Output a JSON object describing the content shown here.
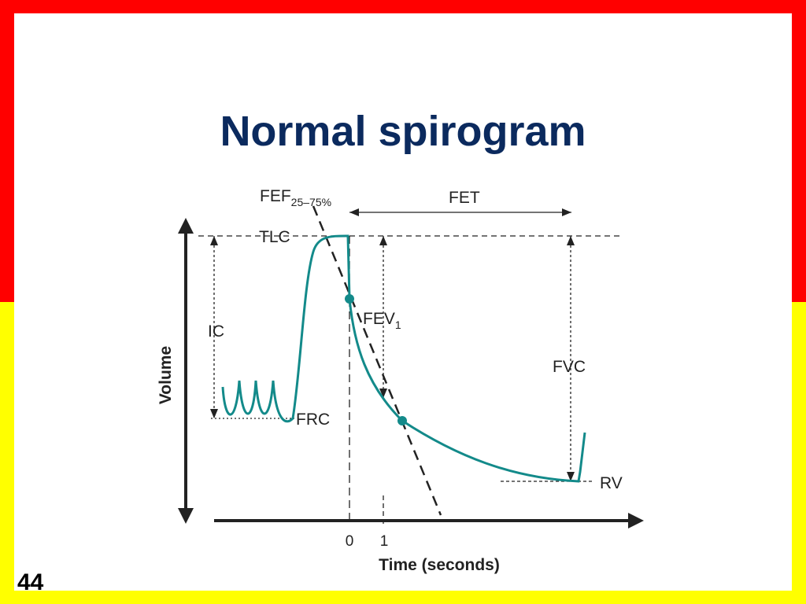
{
  "slide": {
    "title": "Normal spirogram",
    "page_number": "44",
    "colors": {
      "border_top": "#ff0000",
      "border_bottom": "#ffff00",
      "title": "#0b2a5e",
      "curve": "#138a8a"
    }
  },
  "diagram": {
    "labels": {
      "fef_main": "FEF",
      "fef_sub": "25–75%",
      "fet": "FET",
      "tlc": "TLC",
      "ic": "IC",
      "fev_main": "FEV",
      "fev_sub": "1",
      "fvc": "FVC",
      "frc": "FRC",
      "rv": "RV",
      "y_axis": "Volume",
      "x_axis": "Time (seconds)",
      "tick_0": "0",
      "tick_1": "1"
    }
  }
}
